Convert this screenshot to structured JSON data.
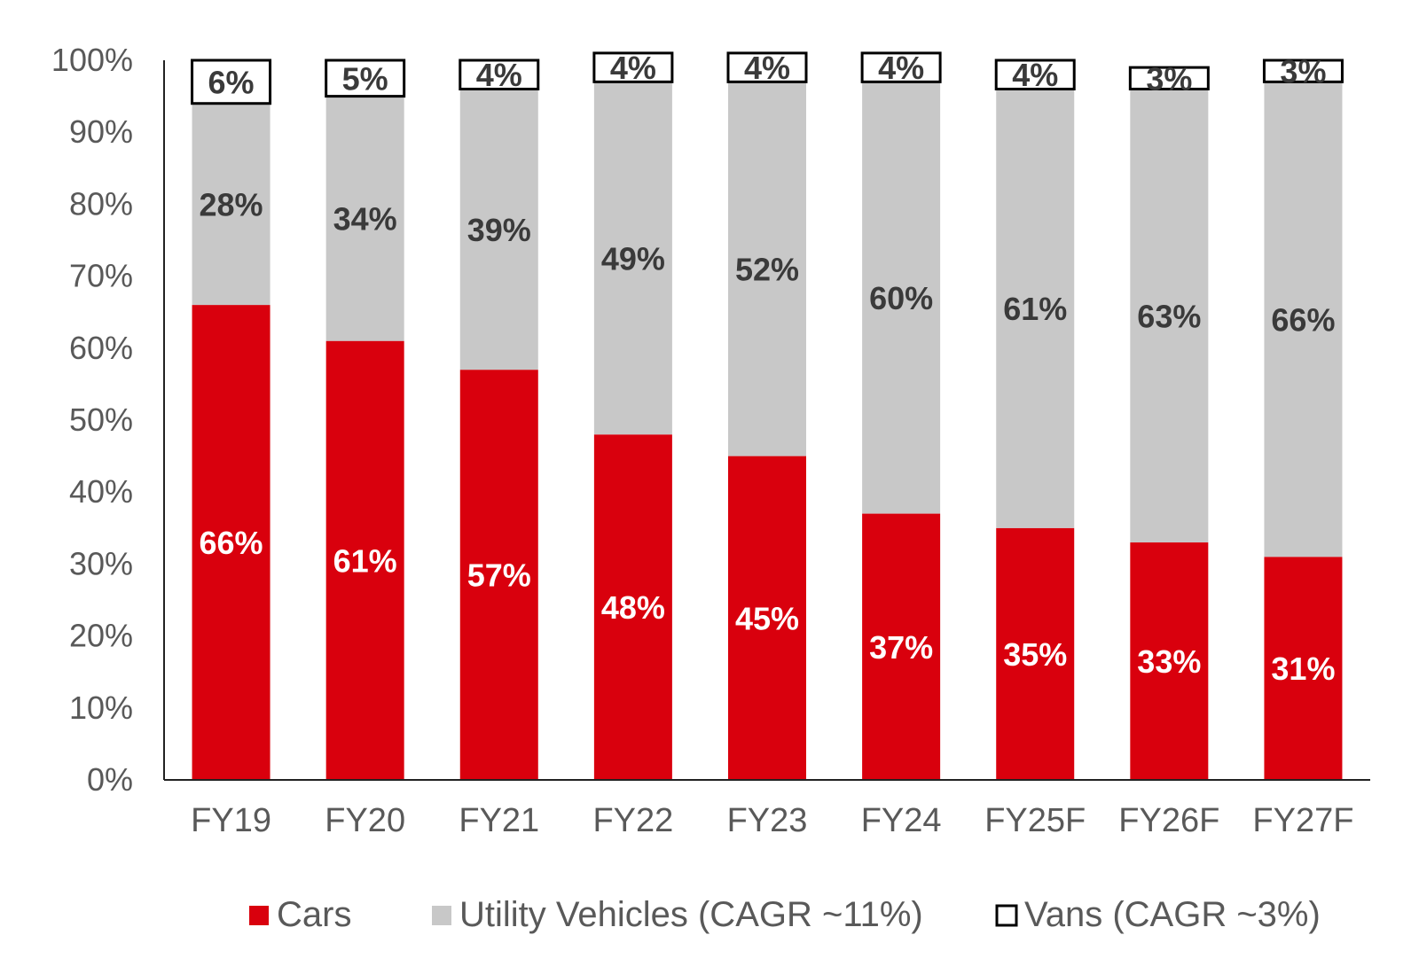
{
  "chart_data": {
    "type": "bar",
    "stacked": true,
    "categories": [
      "FY19",
      "FY20",
      "FY21",
      "FY22",
      "FY23",
      "FY24",
      "FY25F",
      "FY26F",
      "FY27F"
    ],
    "series": [
      {
        "name": "Cars",
        "color": "#d9000d",
        "values": [
          66,
          61,
          57,
          48,
          45,
          37,
          35,
          33,
          31
        ],
        "labels": [
          "66%",
          "61%",
          "57%",
          "48%",
          "45%",
          "37%",
          "35%",
          "33%",
          "31%"
        ]
      },
      {
        "name": "Utility Vehicles (CAGR ~11%)",
        "color": "#c8c8c8",
        "values": [
          28,
          34,
          39,
          49,
          52,
          60,
          61,
          63,
          66
        ],
        "labels": [
          "28%",
          "34%",
          "39%",
          "49%",
          "52%",
          "60%",
          "61%",
          "63%",
          "66%"
        ]
      },
      {
        "name": "Vans (CAGR ~3%)",
        "color": "#ffffff",
        "values": [
          6,
          5,
          4,
          4,
          4,
          4,
          4,
          3,
          3
        ],
        "labels": [
          "6%",
          "5%",
          "4%",
          "4%",
          "4%",
          "4%",
          "4%",
          "3%",
          "3%"
        ]
      }
    ],
    "ylim": [
      0,
      100
    ],
    "yticks": [
      "0%",
      "10%",
      "20%",
      "30%",
      "40%",
      "50%",
      "60%",
      "70%",
      "80%",
      "90%",
      "100%"
    ],
    "grid": false,
    "legend": "bottom",
    "title": "",
    "xlabel": "",
    "ylabel": ""
  }
}
